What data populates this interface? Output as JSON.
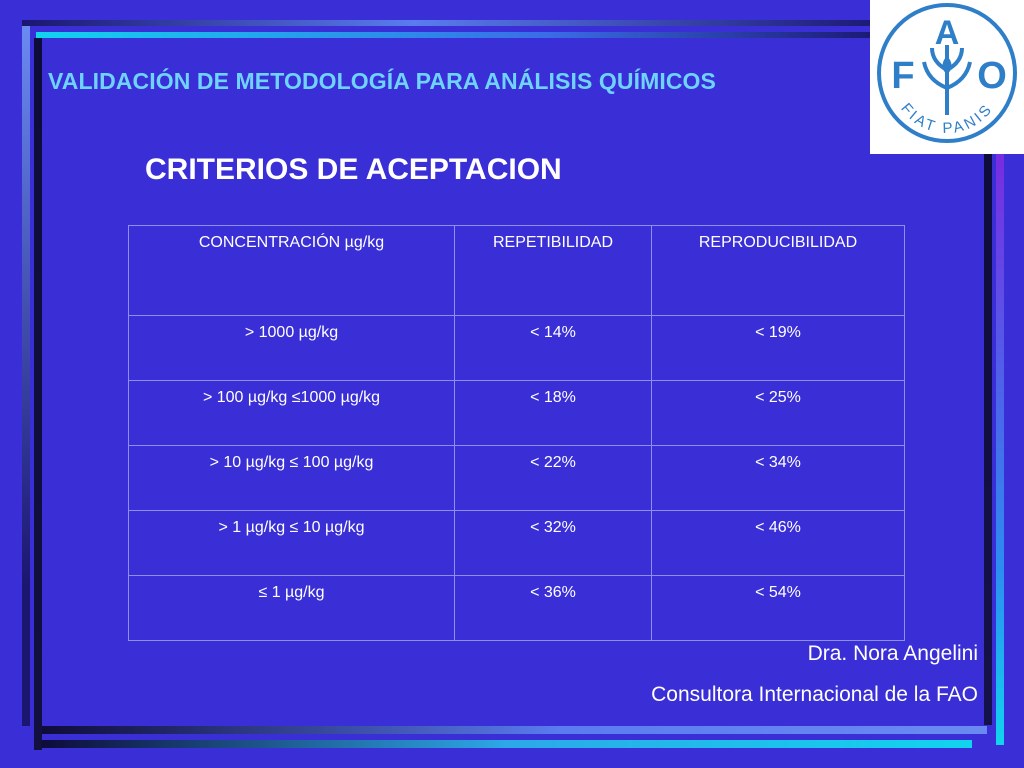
{
  "slide": {
    "title": "VALIDACIÓN DE METODOLOGÍA PARA ANÁLISIS QUÍMICOS",
    "subtitle": "CRITERIOS DE ACEPTACION"
  },
  "logo": {
    "icon": "fao-logo-icon",
    "letters": [
      "F",
      "A",
      "O"
    ],
    "motto": "FIAT PANIS"
  },
  "table": {
    "headers": [
      "CONCENTRACIÓN µg/kg",
      "REPETIBILIDAD",
      "REPRODUCIBILIDAD"
    ],
    "rows": [
      [
        "> 1000 µg/kg",
        "< 14%",
        "< 19%"
      ],
      [
        "> 100 µg/kg  ≤1000 µg/kg",
        "< 18%",
        "< 25%"
      ],
      [
        "> 10 µg/kg ≤ 100 µg/kg",
        "< 22%",
        "< 34%"
      ],
      [
        "> 1 µg/kg ≤ 10 µg/kg",
        "< 32%",
        "< 46%"
      ],
      [
        "≤ 1  µg/kg",
        "< 36%",
        "< 54%"
      ]
    ]
  },
  "footer": {
    "author": "Dra. Nora Angelini",
    "role": "Consultora Internacional de la FAO"
  },
  "colors": {
    "background": "#3a2fd6",
    "title": "#6fd3ff",
    "logo_blue": "#2f7fc8"
  }
}
